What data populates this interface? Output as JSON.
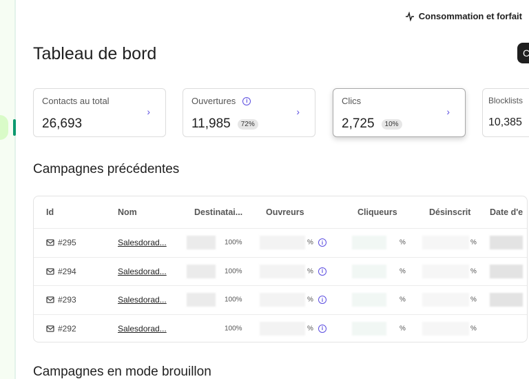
{
  "topbar": {
    "usage_label": "Consommation et forfait",
    "icon": "activity-icon"
  },
  "title": "Tableau de bord",
  "header_button_label": "C",
  "cards": [
    {
      "label": "Contacts au total",
      "value": "26,693",
      "badge": null,
      "info": false
    },
    {
      "label": "Ouvertures",
      "value": "11,985",
      "badge": "72%",
      "info": true
    },
    {
      "label": "Clics",
      "value": "2,725",
      "badge": "10%",
      "info": false,
      "selected": true
    },
    {
      "label": "Blocklists",
      "value": "10,385",
      "badge": null,
      "info": false
    }
  ],
  "campaigns": {
    "heading": "Campagnes précédentes",
    "columns": [
      "Id",
      "Nom",
      "Destinatai...",
      "Ouvreurs",
      "Cliqueurs",
      "Désinscrit",
      "Date d'e"
    ],
    "rows": [
      {
        "id": "#295",
        "name": "Salesdorad...",
        "dest": "100%",
        "open": "%",
        "click": "%",
        "unsub": "%"
      },
      {
        "id": "#294",
        "name": "Salesdorad...",
        "dest": "100%",
        "open": "%",
        "click": "%",
        "unsub": "%"
      },
      {
        "id": "#293",
        "name": "Salesdorad...",
        "dest": "100%",
        "open": "%",
        "click": "%",
        "unsub": "%"
      },
      {
        "id": "#292",
        "name": "Salesdorad...",
        "dest": "100%",
        "open": "%",
        "click": "%",
        "unsub": "%"
      }
    ]
  },
  "drafts_heading": "Campagnes en mode brouillon",
  "colors": {
    "accent": "#5b4de0",
    "sidebar_active": "#0b996e"
  }
}
